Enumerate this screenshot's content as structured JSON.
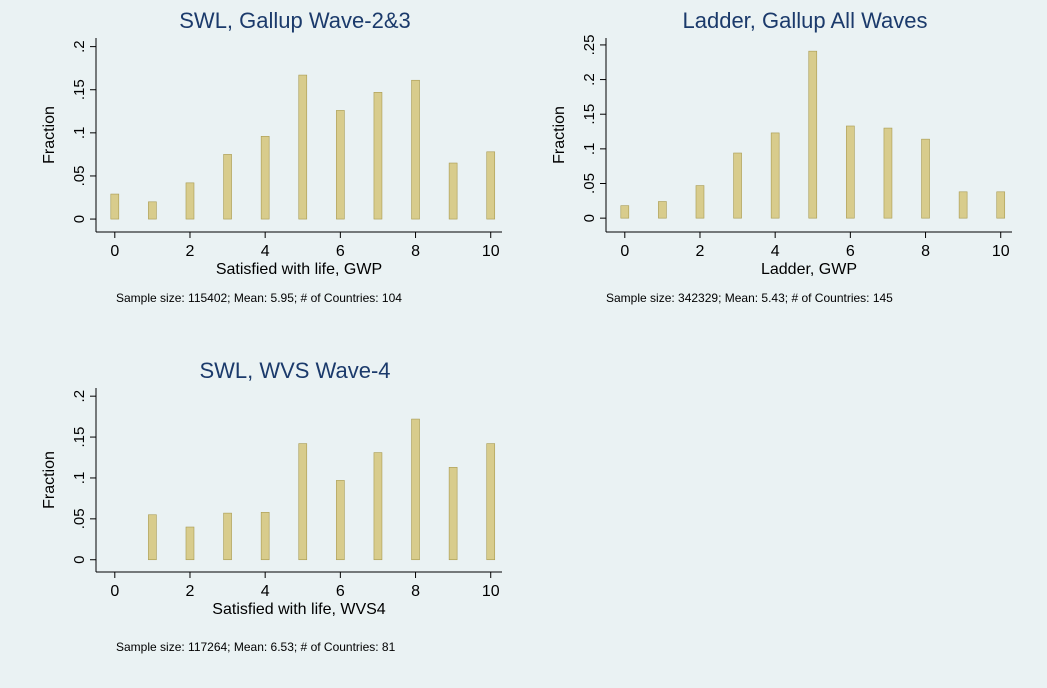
{
  "style": {
    "bar_fill": "#d8cc8c",
    "bar_stroke": "#a89a50",
    "title_color": "#1b3a6b",
    "background": "#eaf2f3"
  },
  "panels": [
    {
      "title": "SWL, Gallup Wave-2&3",
      "note": "Sample size: 115402; Mean: 5.95; # of Countries: 104"
    },
    {
      "title": "Ladder, Gallup All Waves",
      "note": "Sample size: 342329; Mean: 5.43; # of Countries: 145"
    },
    {
      "title": "SWL, WVS Wave-4",
      "note": "Sample size: 117264; Mean: 6.53; # of Countries: 81"
    }
  ],
  "chart_data": [
    {
      "type": "bar",
      "title": "SWL, Gallup Wave-2&3",
      "xlabel": "Satisfied with life, GWP",
      "ylabel": "Fraction",
      "x": [
        0,
        1,
        2,
        3,
        4,
        5,
        6,
        7,
        8,
        9,
        10
      ],
      "values": [
        0.029,
        0.02,
        0.042,
        0.075,
        0.096,
        0.167,
        0.126,
        0.147,
        0.161,
        0.065,
        0.078
      ],
      "xticks": [
        0,
        2,
        4,
        6,
        8,
        10
      ],
      "xtick_labels": [
        "0",
        "2",
        "4",
        "6",
        "8",
        "10"
      ],
      "yticks": [
        0,
        0.05,
        0.1,
        0.15,
        0.2
      ],
      "ytick_labels": [
        "0",
        ".05",
        ".1",
        ".15",
        ".2"
      ],
      "xlim": [
        -0.5,
        10.3
      ],
      "ylim": [
        -0.015,
        0.21
      ],
      "grid": false
    },
    {
      "type": "bar",
      "title": "Ladder, Gallup All Waves",
      "xlabel": "Ladder, GWP",
      "ylabel": "Fraction",
      "x": [
        0,
        1,
        2,
        3,
        4,
        5,
        6,
        7,
        8,
        9,
        10
      ],
      "values": [
        0.018,
        0.024,
        0.047,
        0.094,
        0.123,
        0.241,
        0.133,
        0.13,
        0.114,
        0.038,
        0.038
      ],
      "xticks": [
        0,
        2,
        4,
        6,
        8,
        10
      ],
      "xtick_labels": [
        "0",
        "2",
        "4",
        "6",
        "8",
        "10"
      ],
      "yticks": [
        0,
        0.05,
        0.1,
        0.15,
        0.2,
        0.25
      ],
      "ytick_labels": [
        "0",
        ".05",
        ".1",
        ".15",
        ".2",
        ".25"
      ],
      "xlim": [
        -0.5,
        10.3
      ],
      "ylim": [
        -0.02,
        0.26
      ],
      "grid": false
    },
    {
      "type": "bar",
      "title": "SWL, WVS Wave-4",
      "xlabel": "Satisfied with life, WVS4",
      "ylabel": "Fraction",
      "x": [
        1,
        2,
        3,
        4,
        5,
        6,
        7,
        8,
        9,
        10
      ],
      "values": [
        0.055,
        0.04,
        0.057,
        0.058,
        0.142,
        0.097,
        0.131,
        0.172,
        0.113,
        0.142
      ],
      "xticks": [
        0,
        2,
        4,
        6,
        8,
        10
      ],
      "xtick_labels": [
        "0",
        "2",
        "4",
        "6",
        "8",
        "10"
      ],
      "yticks": [
        0,
        0.05,
        0.1,
        0.15,
        0.2
      ],
      "ytick_labels": [
        "0",
        ".05",
        ".1",
        ".15",
        ".2"
      ],
      "xlim": [
        -0.5,
        10.3
      ],
      "ylim": [
        -0.015,
        0.21
      ],
      "grid": false
    }
  ]
}
